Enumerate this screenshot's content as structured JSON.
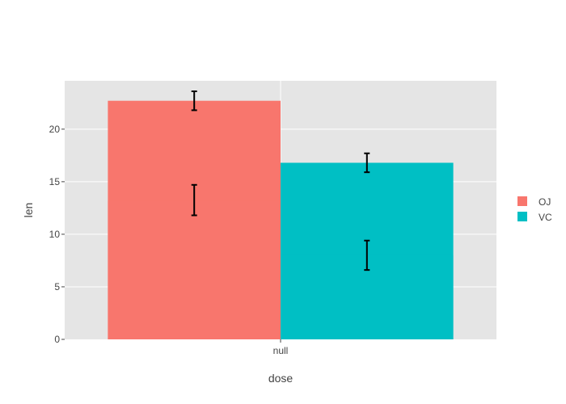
{
  "chart_data": {
    "type": "bar",
    "barmode": "overlay",
    "categories": [
      "null"
    ],
    "xlabel": "dose",
    "ylabel": "len",
    "ylim": [
      0,
      24.6
    ],
    "yticks": [
      0,
      5,
      10,
      15,
      20
    ],
    "grid": true,
    "legend_position": "right",
    "background": "#e5e5e5",
    "series": [
      {
        "name": "OJ",
        "color": "#f8766d",
        "layers": [
          {
            "value": 22.7,
            "error_low": 21.8,
            "error_high": 23.6
          },
          {
            "value": 13.2,
            "error_low": 11.8,
            "error_high": 14.7
          }
        ]
      },
      {
        "name": "VC",
        "color": "#00bfc4",
        "layers": [
          {
            "value": 16.8,
            "error_low": 15.9,
            "error_high": 17.7
          },
          {
            "value": 8.0,
            "error_low": 6.6,
            "error_high": 9.4
          }
        ]
      }
    ]
  }
}
